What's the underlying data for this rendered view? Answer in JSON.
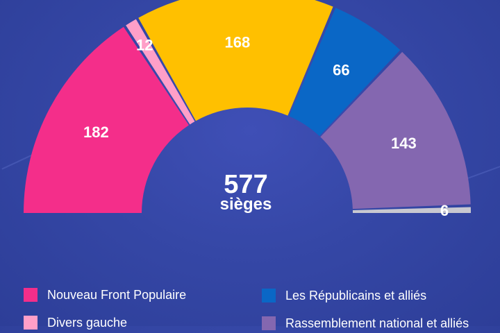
{
  "chart_data": {
    "type": "pie",
    "subtype": "hemicycle",
    "categories": [
      "Nouveau Front Populaire",
      "Divers gauche",
      "",
      "Les Républicains et alliés",
      "Rassemblement national et alliés",
      ""
    ],
    "values": [
      182,
      12,
      168,
      66,
      143,
      6
    ],
    "colors": [
      "#f42e8a",
      "#ff9fc8",
      "#ffc000",
      "#0a67c6",
      "#8467b0",
      "#c8c8d0"
    ],
    "center_value": "577",
    "center_unit": "sièges",
    "legend_placement": "bottom"
  },
  "legend": [
    {
      "label": "Nouveau Front Populaire",
      "color": "#f42e8a"
    },
    {
      "label": "Divers gauche",
      "color": "#ff9fc8"
    },
    {
      "label": "Les Républicains et alliés",
      "color": "#0a67c6"
    },
    {
      "label": "Rassemblement national et alliés",
      "color": "#8467b0"
    }
  ]
}
